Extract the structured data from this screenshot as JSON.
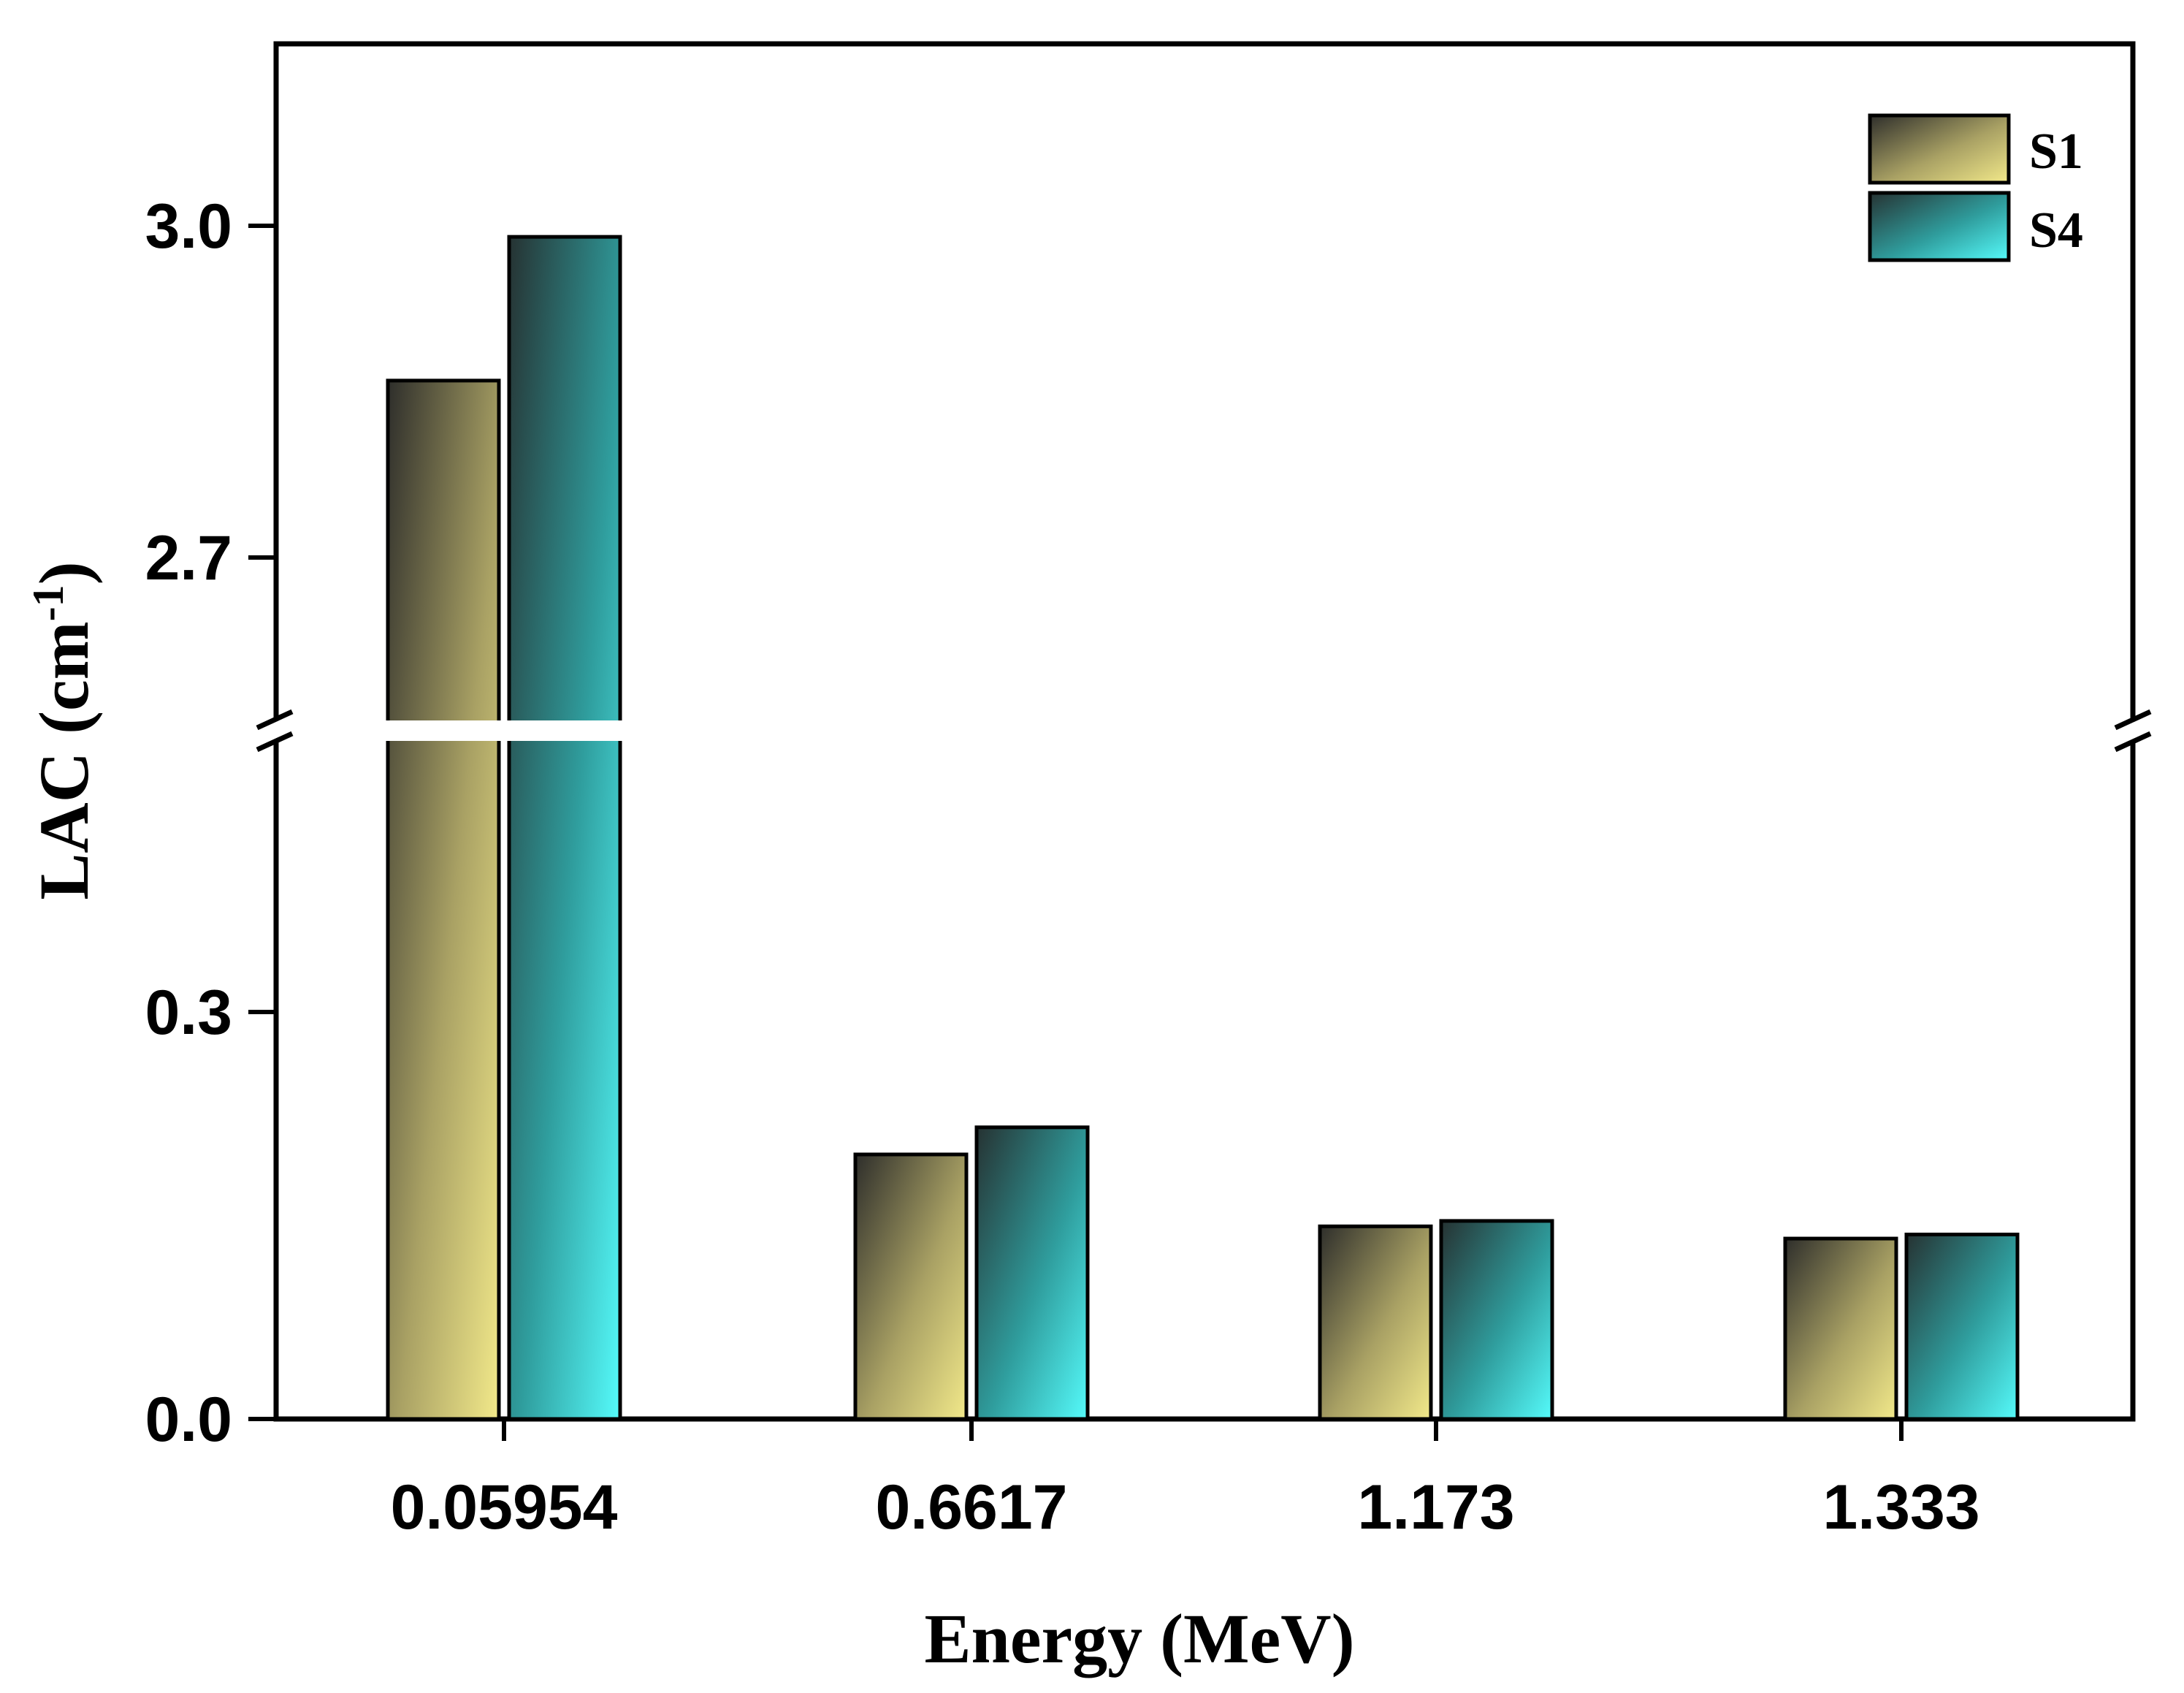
{
  "chart_data": {
    "type": "bar",
    "title": "",
    "xlabel": "Energy (MeV)",
    "ylabel_main": "LAC (cm",
    "ylabel_sup": "-1",
    "ylabel_close": ")",
    "categories": [
      "0.05954",
      "0.6617",
      "1.173",
      "1.333"
    ],
    "series": [
      {
        "name": "S1",
        "values": [
          2.86,
          0.195,
          0.142,
          0.133
        ],
        "color_dark": "#2e2e2b",
        "color_light": "#f2e98a"
      },
      {
        "name": "S4",
        "values": [
          2.99,
          0.215,
          0.146,
          0.136
        ],
        "color_dark": "#263232",
        "color_light": "#55fbfb"
      }
    ],
    "y_break": {
      "lower_range": [
        0,
        0.5
      ],
      "upper_range": [
        2.55,
        3.1
      ]
    },
    "y_ticks": [
      {
        "value": 0.0,
        "label": "0.0"
      },
      {
        "value": 0.3,
        "label": "0.3"
      },
      {
        "value": 2.7,
        "label": "2.7"
      },
      {
        "value": 3.0,
        "label": "3.0"
      }
    ],
    "legend": {
      "position": "top-right",
      "entries": [
        "S1",
        "S4"
      ]
    },
    "grid": false
  }
}
